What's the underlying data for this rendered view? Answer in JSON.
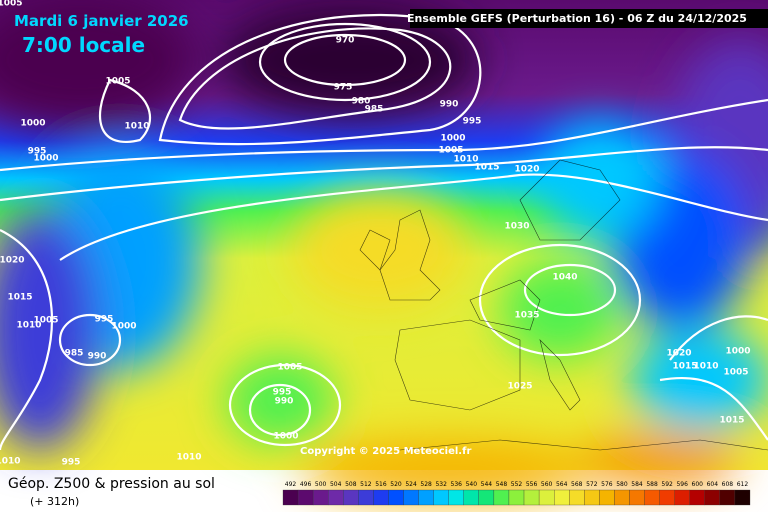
{
  "header": {
    "date": "Mardi 6 janvier 2026",
    "time": "7:00 locale",
    "source": "Ensemble GEFS  (Perturbation 16)  -  06 Z du 24/12/2025"
  },
  "copyright": "Copyright © 2025 Meteociel.fr",
  "footer": {
    "title": "Géop. Z500 & pression au sol",
    "subtitle": "(+ 312h)"
  },
  "isobar_labels": [
    970,
    975,
    980,
    985,
    990,
    995,
    1000,
    1005,
    1010,
    1015,
    1020,
    1030,
    1040,
    1035,
    1025,
    1020,
    1015,
    1010,
    1000,
    1005,
    1015,
    1005,
    1010,
    1000,
    995,
    1000,
    1020,
    1015,
    1010,
    1005,
    995,
    1000,
    985,
    990,
    1005,
    995,
    990,
    1000,
    1010,
    995,
    1010,
    1005
  ],
  "legend": {
    "levels": [
      492,
      496,
      500,
      504,
      508,
      512,
      516,
      520,
      524,
      528,
      532,
      536,
      540,
      544,
      548,
      552,
      556,
      560,
      564,
      568,
      572,
      576,
      580,
      584,
      588,
      592,
      596,
      600,
      604,
      608,
      612
    ],
    "colors": [
      "#4b0050",
      "#5c0a6e",
      "#6a1a8c",
      "#6e2aa8",
      "#5a36c0",
      "#3c3cd8",
      "#1e3cf0",
      "#0050ff",
      "#0078ff",
      "#00a0ff",
      "#00c8ff",
      "#00e6e6",
      "#00e6aa",
      "#14e678",
      "#50f050",
      "#8cf03c",
      "#b4f03c",
      "#dcf03c",
      "#f0f03c",
      "#f5dc28",
      "#f5c814",
      "#f5b400",
      "#f59600",
      "#f57800",
      "#f55a00",
      "#f03c00",
      "#dc1e00",
      "#b40000",
      "#8c0000",
      "#500000",
      "#1e0000"
    ]
  }
}
